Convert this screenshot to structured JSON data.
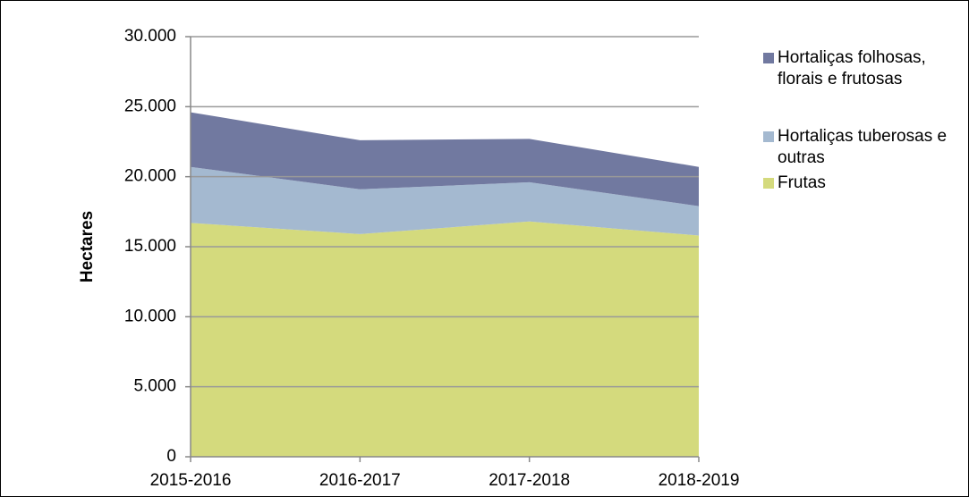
{
  "chart_data": {
    "type": "stacked_area",
    "y_label": "Hectares",
    "categories": [
      "2015-2016",
      "2016-2017",
      "2017-2018",
      "2018-2019"
    ],
    "series": [
      {
        "name": "Frutas",
        "color": "#d4da7d",
        "values": [
          16700,
          15900,
          16800,
          15800
        ]
      },
      {
        "name": "Hortaliças tuberosas e outras",
        "color": "#a4b9d0",
        "values": [
          4000,
          3200,
          2800,
          2100
        ]
      },
      {
        "name": "Hortaliças folhosas, florais e frutosas",
        "color": "#7179a0",
        "values": [
          3900,
          3500,
          3100,
          2800
        ]
      }
    ],
    "ylim": [
      0,
      30000
    ],
    "yticks": [
      0,
      {
        "value": 5000,
        "label": "5.000"
      },
      {
        "value": 10000,
        "label": "10.000"
      },
      {
        "value": 15000,
        "label": "15.000"
      },
      {
        "value": 20000,
        "label": "20.000"
      },
      {
        "value": 25000,
        "label": "25.000"
      },
      {
        "value": 30000,
        "label": "30.000"
      }
    ],
    "grid": true,
    "legend": "right"
  }
}
